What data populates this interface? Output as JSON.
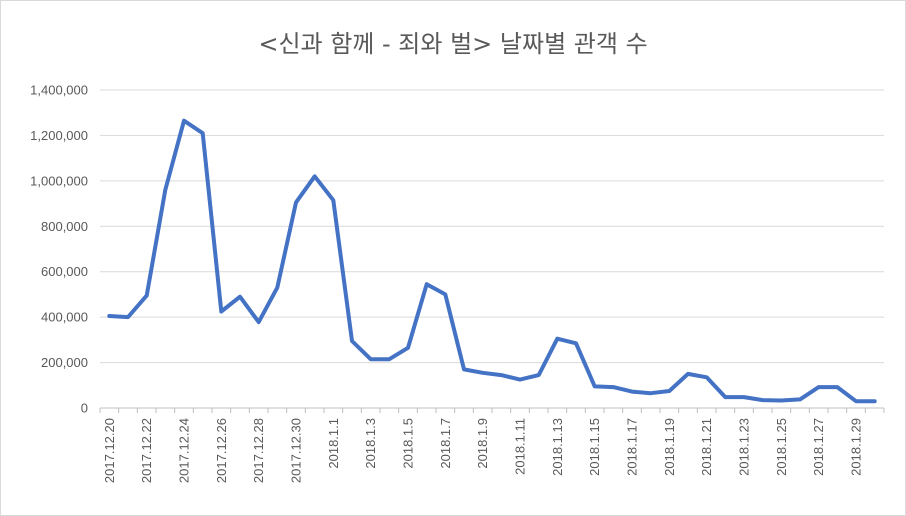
{
  "chart_data": {
    "type": "line",
    "title": "<신과 함께 - 죄와 벌> 날짜별 관객 수",
    "xlabel": "",
    "ylabel": "",
    "ylim": [
      0,
      1400000
    ],
    "y_ticks": [
      "0",
      "200,000",
      "400,000",
      "600,000",
      "800,000",
      "1,000,000",
      "1,200,000",
      "1,400,000"
    ],
    "y_tick_values": [
      0,
      200000,
      400000,
      600000,
      800000,
      1000000,
      1200000,
      1400000
    ],
    "gridlines": true,
    "legend": "none",
    "x_tick_labels": [
      "2017.12.20",
      "2017.12.22",
      "2017.12.24",
      "2017.12.26",
      "2017.12.28",
      "2017.12.30",
      "2018.1.1",
      "2018.1.3",
      "2018.1.5",
      "2018.1.7",
      "2018.1.9",
      "2018.1.11",
      "2018.1.13",
      "2018.1.15",
      "2018.1.17",
      "2018.1.19",
      "2018.1.21",
      "2018.1.23",
      "2018.1.25",
      "2018.1.27",
      "2018.1.29"
    ],
    "x": [
      "2017.12.20",
      "2017.12.21",
      "2017.12.22",
      "2017.12.23",
      "2017.12.24",
      "2017.12.25",
      "2017.12.26",
      "2017.12.27",
      "2017.12.28",
      "2017.12.29",
      "2017.12.30",
      "2017.12.31",
      "2018.1.1",
      "2018.1.2",
      "2018.1.3",
      "2018.1.4",
      "2018.1.5",
      "2018.1.6",
      "2018.1.7",
      "2018.1.8",
      "2018.1.9",
      "2018.1.10",
      "2018.1.11",
      "2018.1.12",
      "2018.1.13",
      "2018.1.14",
      "2018.1.15",
      "2018.1.16",
      "2018.1.17",
      "2018.1.18",
      "2018.1.19",
      "2018.1.20",
      "2018.1.21",
      "2018.1.22",
      "2018.1.23",
      "2018.1.24",
      "2018.1.25",
      "2018.1.26",
      "2018.1.27",
      "2018.1.28",
      "2018.1.29",
      "2018.1.30"
    ],
    "series": [
      {
        "color": "#4472c4",
        "values": [
          405000,
          400000,
          495000,
          960000,
          1265000,
          1210000,
          425000,
          490000,
          378000,
          530000,
          905000,
          1020000,
          915000,
          295000,
          215000,
          215000,
          265000,
          545000,
          500000,
          170000,
          155000,
          145000,
          125000,
          145000,
          305000,
          285000,
          95000,
          92000,
          72000,
          65000,
          75000,
          150000,
          135000,
          48000,
          48000,
          35000,
          33000,
          38000,
          92000,
          92000,
          30000,
          30000
        ]
      }
    ]
  }
}
